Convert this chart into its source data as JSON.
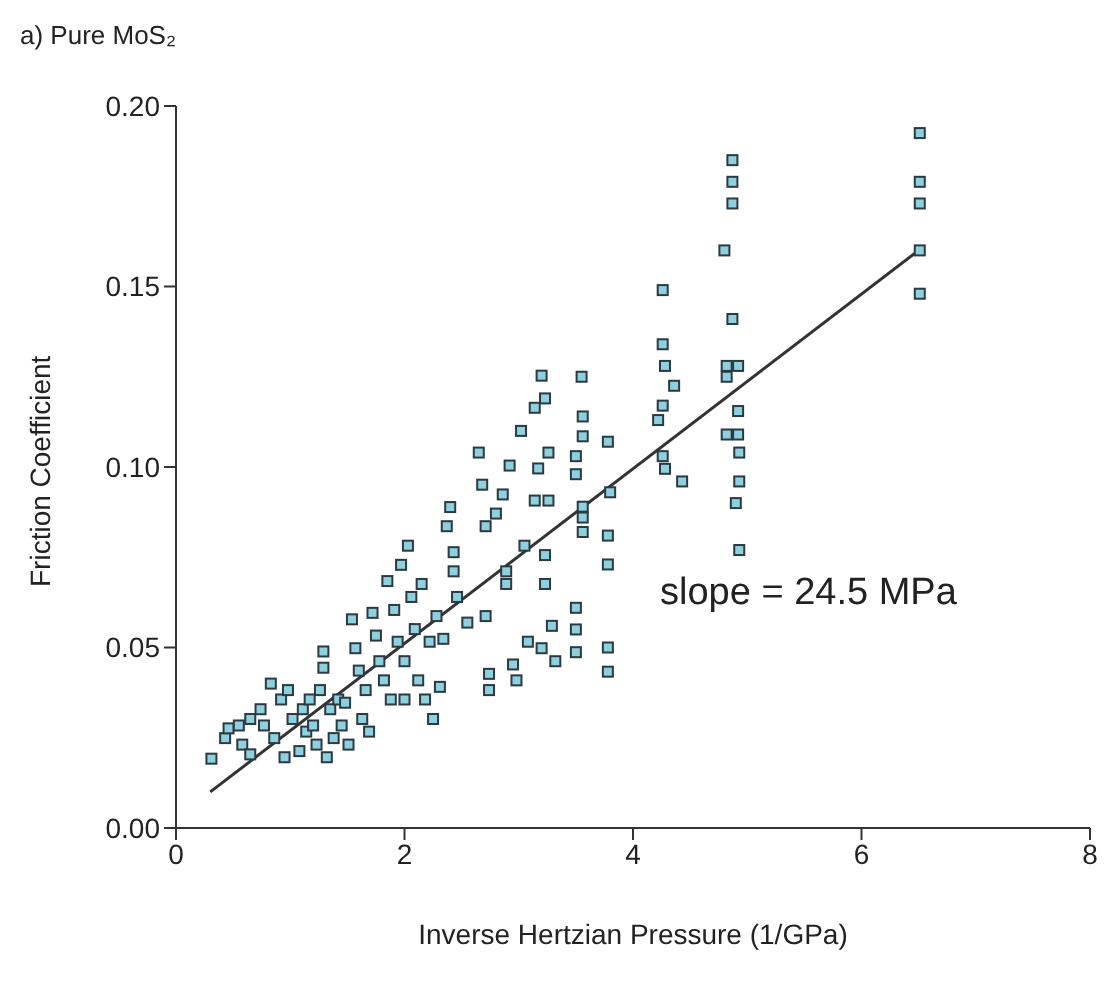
{
  "chart_data": {
    "type": "scatter",
    "title": "a) Pure MoS₂",
    "xlabel": "Inverse Hertzian Pressure (1/GPa)",
    "ylabel": "Friction Coefficient",
    "annotations": [
      "slope = 24.5 MPa"
    ],
    "xlim": [
      0,
      8
    ],
    "xticks": [
      0,
      2,
      4,
      6,
      8
    ],
    "ylim": [
      0,
      0.2
    ],
    "yticks": [
      {
        "value": 0,
        "label": "0.00"
      },
      {
        "value": 0.05,
        "label": "0.05"
      },
      {
        "value": 0.1,
        "label": "0.10"
      },
      {
        "value": 0.15,
        "label": "0.15"
      },
      {
        "value": 0.2,
        "label": "0.20"
      }
    ],
    "series": [
      {
        "marker": "square",
        "color": "#8ecfe0",
        "x": [
          0.31,
          0.43,
          0.46,
          0.55,
          0.65,
          0.58,
          0.65,
          0.74,
          0.77,
          0.83,
          0.86,
          0.92,
          0.95,
          0.98,
          1.02,
          1.08,
          1.11,
          1.14,
          1.17,
          1.2,
          1.23,
          1.26,
          1.29,
          1.29,
          1.32,
          1.35,
          1.38,
          1.42,
          1.45,
          1.48,
          1.51,
          1.54,
          1.57,
          1.6,
          1.63,
          1.66,
          1.69,
          1.72,
          1.75,
          1.78,
          1.82,
          1.85,
          1.88,
          1.91,
          1.94,
          1.97,
          2.0,
          2.0,
          2.03,
          2.06,
          2.09,
          2.12,
          2.15,
          2.18,
          2.22,
          2.25,
          2.28,
          2.31,
          2.34,
          2.37,
          2.4,
          2.43,
          2.43,
          2.46,
          2.55,
          2.65,
          2.68,
          2.71,
          2.71,
          2.74,
          2.74,
          2.8,
          2.86,
          2.89,
          2.89,
          2.92,
          2.95,
          2.98,
          3.02,
          3.05,
          3.08,
          3.14,
          3.14,
          3.17,
          3.2,
          3.2,
          3.23,
          3.23,
          3.23,
          3.26,
          3.26,
          3.29,
          3.32,
          3.55,
          3.56,
          3.56,
          3.78,
          3.5,
          3.5,
          3.8,
          3.56,
          3.56,
          3.78,
          3.56,
          3.78,
          3.5,
          3.5,
          3.5,
          3.78,
          3.78,
          4.26,
          4.26,
          4.28,
          4.36,
          4.26,
          4.22,
          4.26,
          4.28,
          4.43,
          4.87,
          4.87,
          4.87,
          4.8,
          4.87,
          4.82,
          4.92,
          4.82,
          4.92,
          4.82,
          4.92,
          4.93,
          4.93,
          4.9,
          4.93,
          6.51,
          6.51,
          6.51,
          6.51,
          6.51
        ],
        "values": [
          0.0192,
          0.0249,
          0.0276,
          0.0284,
          0.0302,
          0.0231,
          0.0204,
          0.0329,
          0.0284,
          0.04,
          0.0249,
          0.0356,
          0.0196,
          0.0382,
          0.0302,
          0.0213,
          0.0329,
          0.0267,
          0.0356,
          0.0284,
          0.0231,
          0.0382,
          0.0489,
          0.0444,
          0.0196,
          0.0329,
          0.0249,
          0.0356,
          0.0284,
          0.0347,
          0.0231,
          0.0578,
          0.0498,
          0.0436,
          0.0302,
          0.0382,
          0.0267,
          0.0596,
          0.0533,
          0.0462,
          0.0409,
          0.0684,
          0.0356,
          0.0604,
          0.0516,
          0.0729,
          0.0462,
          0.0356,
          0.0782,
          0.064,
          0.0551,
          0.0409,
          0.0676,
          0.0356,
          0.0516,
          0.0302,
          0.0587,
          0.0391,
          0.0524,
          0.0836,
          0.0889,
          0.0711,
          0.0764,
          0.064,
          0.0569,
          0.104,
          0.0951,
          0.0836,
          0.0587,
          0.0427,
          0.0382,
          0.0871,
          0.0924,
          0.0711,
          0.0676,
          0.1004,
          0.0453,
          0.0409,
          0.11,
          0.0782,
          0.0516,
          0.0907,
          0.1164,
          0.0996,
          0.1253,
          0.0498,
          0.119,
          0.0756,
          0.0676,
          0.104,
          0.0907,
          0.056,
          0.0462,
          0.125,
          0.114,
          0.1085,
          0.107,
          0.103,
          0.098,
          0.093,
          0.089,
          0.086,
          0.081,
          0.082,
          0.073,
          0.061,
          0.055,
          0.0487,
          0.05,
          0.0433,
          0.149,
          0.134,
          0.128,
          0.1225,
          0.117,
          0.113,
          0.103,
          0.0995,
          0.096,
          0.185,
          0.179,
          0.173,
          0.16,
          0.141,
          0.128,
          0.128,
          0.125,
          0.1155,
          0.109,
          0.109,
          0.104,
          0.096,
          0.09,
          0.077,
          0.1925,
          0.179,
          0.173,
          0.16,
          0.148
        ]
      },
      {
        "type": "line",
        "marker": "none",
        "color": "#333333",
        "x": [
          0.3,
          6.5
        ],
        "values": [
          0.01,
          0.16
        ]
      }
    ]
  }
}
